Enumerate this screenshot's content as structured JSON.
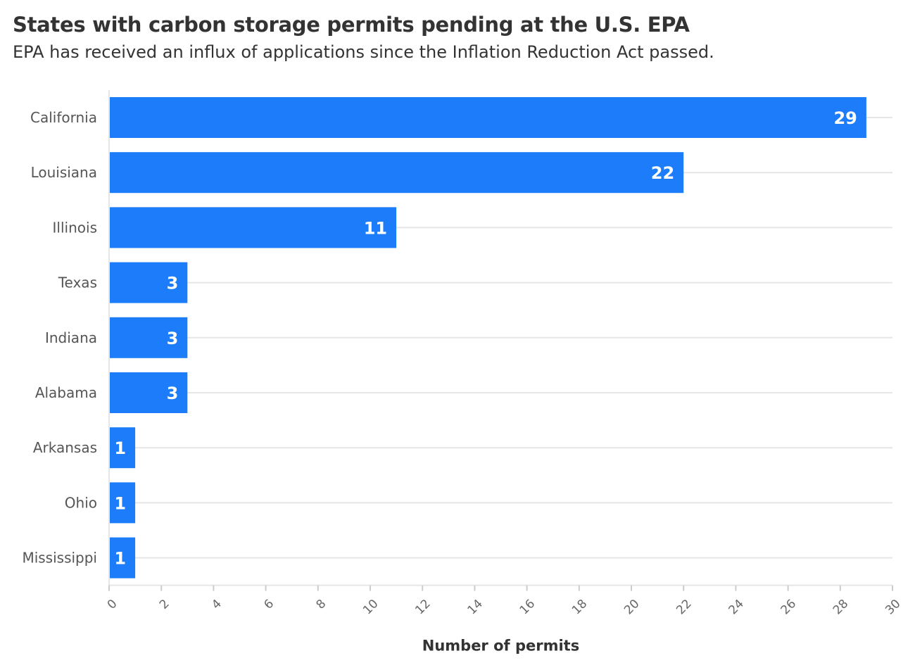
{
  "chart_data": {
    "type": "bar",
    "orientation": "horizontal",
    "title": "States with carbon storage permits pending at the U.S. EPA",
    "subtitle": "EPA has received an influx of applications since the Inflation Reduction Act passed.",
    "categories": [
      "California",
      "Louisiana",
      "Illinois",
      "Texas",
      "Indiana",
      "Alabama",
      "Arkansas",
      "Ohio",
      "Mississippi"
    ],
    "values": [
      29,
      22,
      11,
      3,
      3,
      3,
      1,
      1,
      1
    ],
    "xlabel": "Number of permits",
    "ylabel": "",
    "xlim": [
      0,
      30
    ],
    "x_ticks": [
      0,
      2,
      4,
      6,
      8,
      10,
      12,
      14,
      16,
      18,
      20,
      22,
      24,
      26,
      28,
      30
    ],
    "data_labels": true,
    "grid": true,
    "bar_color": "#1c7cf9",
    "grid_color": "#e6e6e6"
  }
}
